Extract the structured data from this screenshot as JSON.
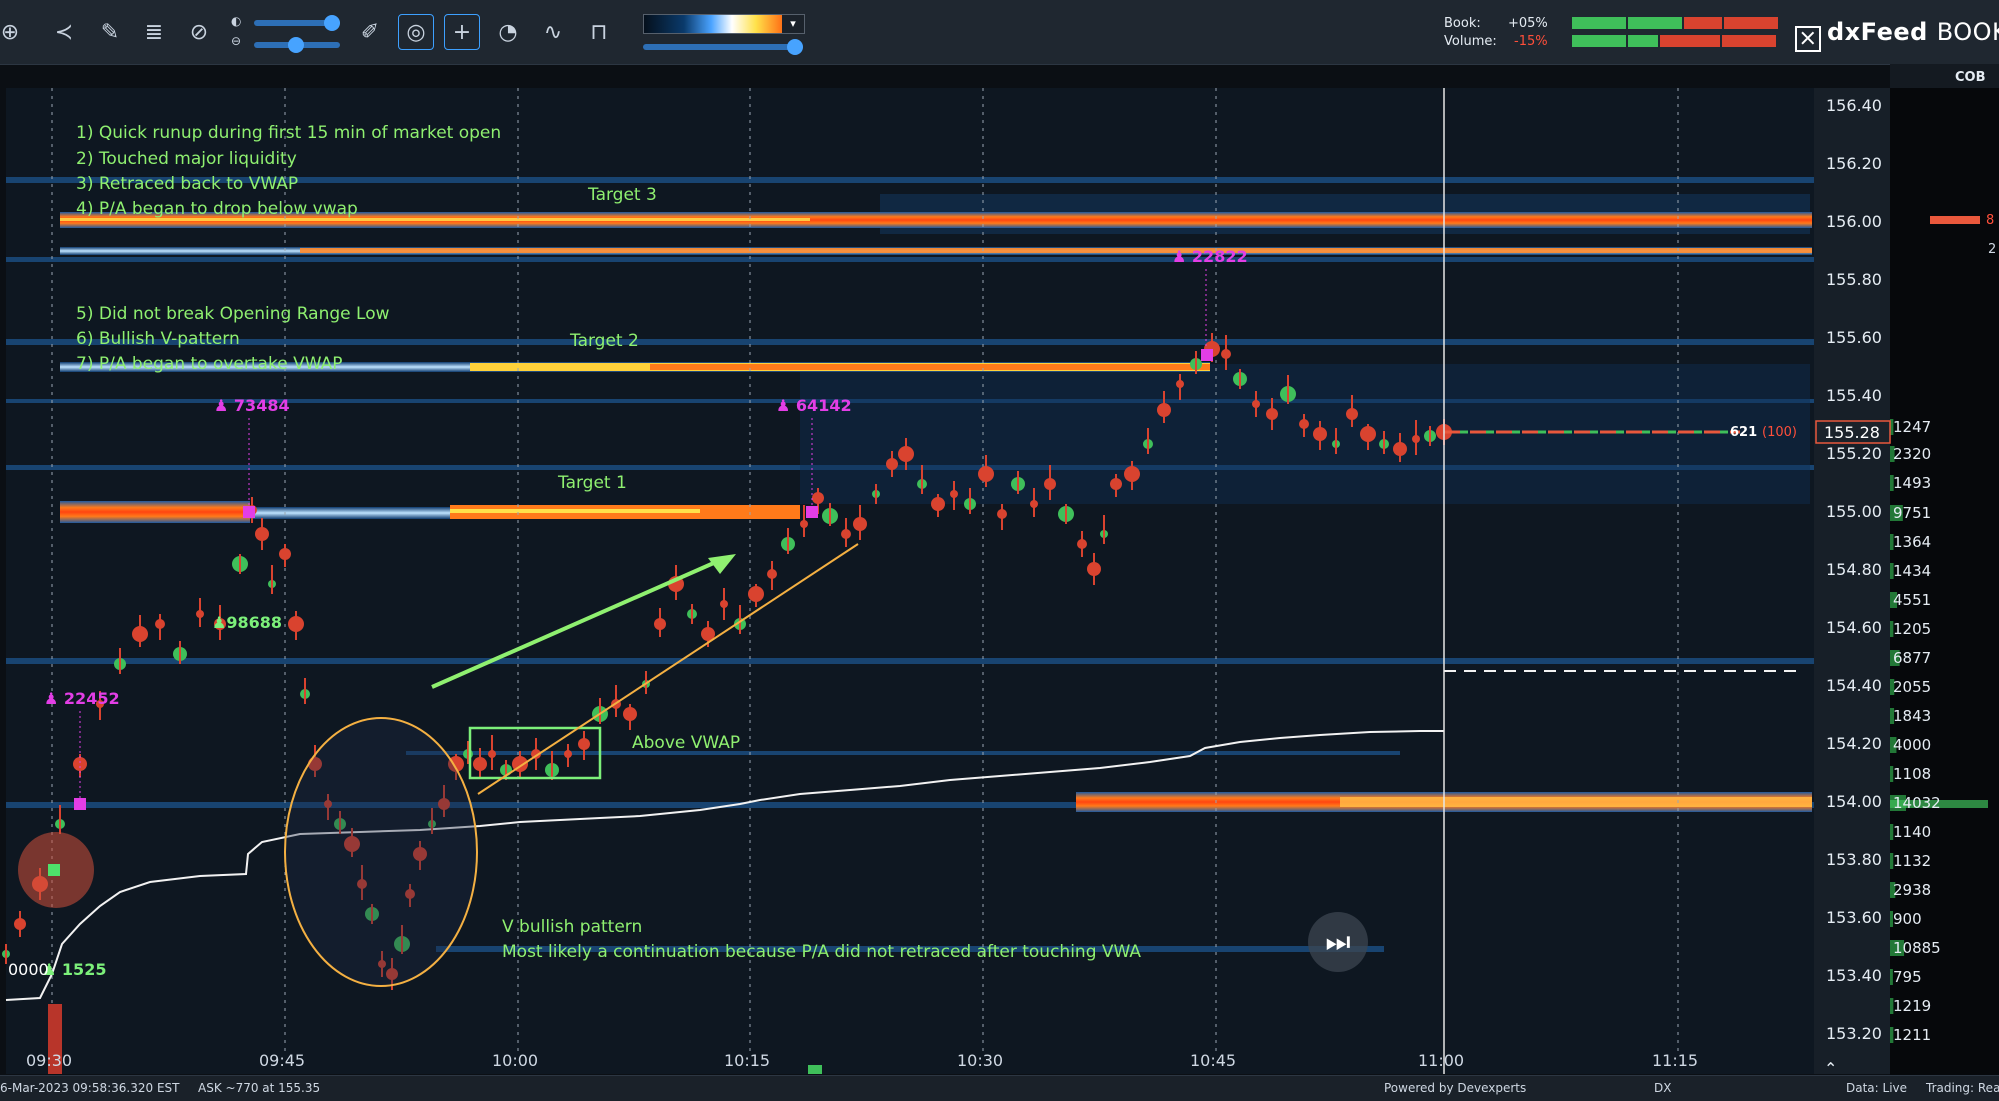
{
  "toolbar": {
    "icons": [
      "target-icon",
      "share-icon",
      "brush-icon",
      "layers-icon",
      "link-icon",
      "brightness-icon",
      "contrast-icon",
      "pencil-icon",
      "chat-bubble-icon",
      "crosshair-icon",
      "stopwatch-icon",
      "indicator-icon",
      "lock-icon"
    ],
    "book_label": "Book:",
    "book_value": "+05%",
    "volume_label": "Volume:",
    "volume_value": "-15%",
    "brand_bold": "dxFeed",
    "brand_light": "BOOKM",
    "colors": {
      "accent": "#3da0ff",
      "meter_green": "#3fbf5a",
      "meter_red": "#d9432f",
      "volume_neg": "#ff4f3a"
    }
  },
  "right_panel": {
    "header": "COB",
    "marker_top": "8",
    "marker_small": "2"
  },
  "price_axis": {
    "labels": [
      "156.40",
      "156.20",
      "156.00",
      "155.80",
      "155.60",
      "155.40",
      "155.20",
      "155.00",
      "154.80",
      "154.60",
      "154.40",
      "154.20",
      "154.00",
      "153.80",
      "153.60",
      "153.40",
      "153.20"
    ],
    "current_price": "155.28"
  },
  "cob_volumes": [
    "1247",
    "2320",
    "1493",
    "9751",
    "1364",
    "1434",
    "4551",
    "1205",
    "6877",
    "2055",
    "1843",
    "4000",
    "1108",
    "14032",
    "1140",
    "1132",
    "2938",
    "900",
    "10885",
    "795",
    "1219",
    "1211"
  ],
  "time_axis": {
    "labels": [
      "09:30",
      "09:45",
      "10:00",
      "10:15",
      "10:30",
      "10:45",
      "11:00",
      "11:15"
    ]
  },
  "annotations": {
    "notes_top": [
      "1) Quick runup during first 15 min of market open",
      "2) Touched major liquidity",
      "3) Retraced back to VWAP",
      "4) P/A began to drop below vwap"
    ],
    "notes_mid": [
      "5) Did not break Opening Range Low",
      "6) Bullish V-pattern",
      "7) P/A began to overtake VWAP"
    ],
    "target3": "Target 3",
    "target2": "Target 2",
    "target1": "Target 1",
    "above_vwap": "Above VWAP",
    "v_pattern": "V bullish pattern",
    "continuation": "Most likely a continuation because P/A did not retraced after touching VWA"
  },
  "trade_markers": {
    "m22452": "22452",
    "m73484": "73484",
    "m98688": "98688",
    "m64142": "64142",
    "m22822": "22822",
    "m1525": "1525",
    "m0000": "0000"
  },
  "position_label": {
    "qty": "621",
    "paren": "(100)"
  },
  "statusbar": {
    "datetime": "6-Mar-2023 09:58:36.320 EST",
    "ask": "ASK ~770 at 155.35",
    "powered": "Powered by Devexperts",
    "dx": "DX",
    "data": "Data: Live",
    "trading": "Trading: Rea"
  }
}
